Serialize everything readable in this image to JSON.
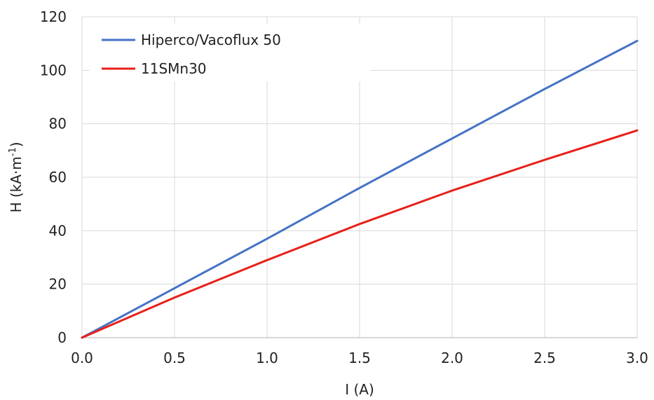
{
  "chart_data": {
    "type": "line",
    "xlabel": "I (A)",
    "ylabel_parts": [
      "H (kA·m",
      "-1",
      ")"
    ],
    "xlim": [
      0,
      3
    ],
    "ylim": [
      0,
      120
    ],
    "x_ticks": [
      "0.0",
      "0.5",
      "1.0",
      "1.5",
      "2.0",
      "2.5",
      "3.0"
    ],
    "y_ticks": [
      "0",
      "20",
      "40",
      "60",
      "80",
      "100",
      "120"
    ],
    "grid": true,
    "legend_position": "top-left",
    "series": [
      {
        "name": "Hiperco/Vacoflux 50",
        "color": "#4472c4",
        "x": [
          0,
          0.5,
          1.0,
          1.5,
          2.0,
          2.5,
          3.0
        ],
        "y": [
          0,
          18.5,
          37,
          56,
          74.5,
          93,
          111
        ]
      },
      {
        "name": "11SMn30",
        "color": "#e8201a",
        "x": [
          0,
          0.5,
          1.0,
          1.5,
          2.0,
          2.5,
          3.0
        ],
        "y": [
          0,
          15,
          29,
          42.5,
          55,
          66.5,
          77.5
        ]
      }
    ]
  }
}
